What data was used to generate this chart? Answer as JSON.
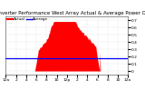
{
  "title": "Solar PV/Inverter Performance West Array Actual & Average Power Output",
  "bg_color": "#ffffff",
  "plot_bg_color": "#ffffff",
  "grid_color": "#aaaaaa",
  "area_color": "#ff0000",
  "avg_line_color": "#0000ff",
  "avg_value": 0.18,
  "ylim": [
    -0.05,
    0.75
  ],
  "xlim": [
    0,
    287
  ],
  "num_points": 288,
  "title_fontsize": 4.0,
  "tick_fontsize": 3.2,
  "legend_actual_color": "#ff0000",
  "legend_avg_color": "#0000ff",
  "legend_actual_label": "Actual",
  "legend_avg_label": "Average",
  "ytick_labels": [
    "0",
    "0.1",
    "0.2",
    "0.3",
    "0.4",
    "0.5",
    "0.6",
    "0.7"
  ],
  "ytick_values": [
    0,
    0.1,
    0.2,
    0.3,
    0.4,
    0.5,
    0.6,
    0.7
  ],
  "xtick_labels": [
    "12a",
    "2",
    "4",
    "6",
    "8",
    "10",
    "12p",
    "2",
    "4",
    "6",
    "8",
    "10",
    "12a"
  ],
  "xtick_positions": [
    0,
    24,
    48,
    72,
    96,
    120,
    144,
    168,
    192,
    216,
    240,
    264,
    287
  ]
}
